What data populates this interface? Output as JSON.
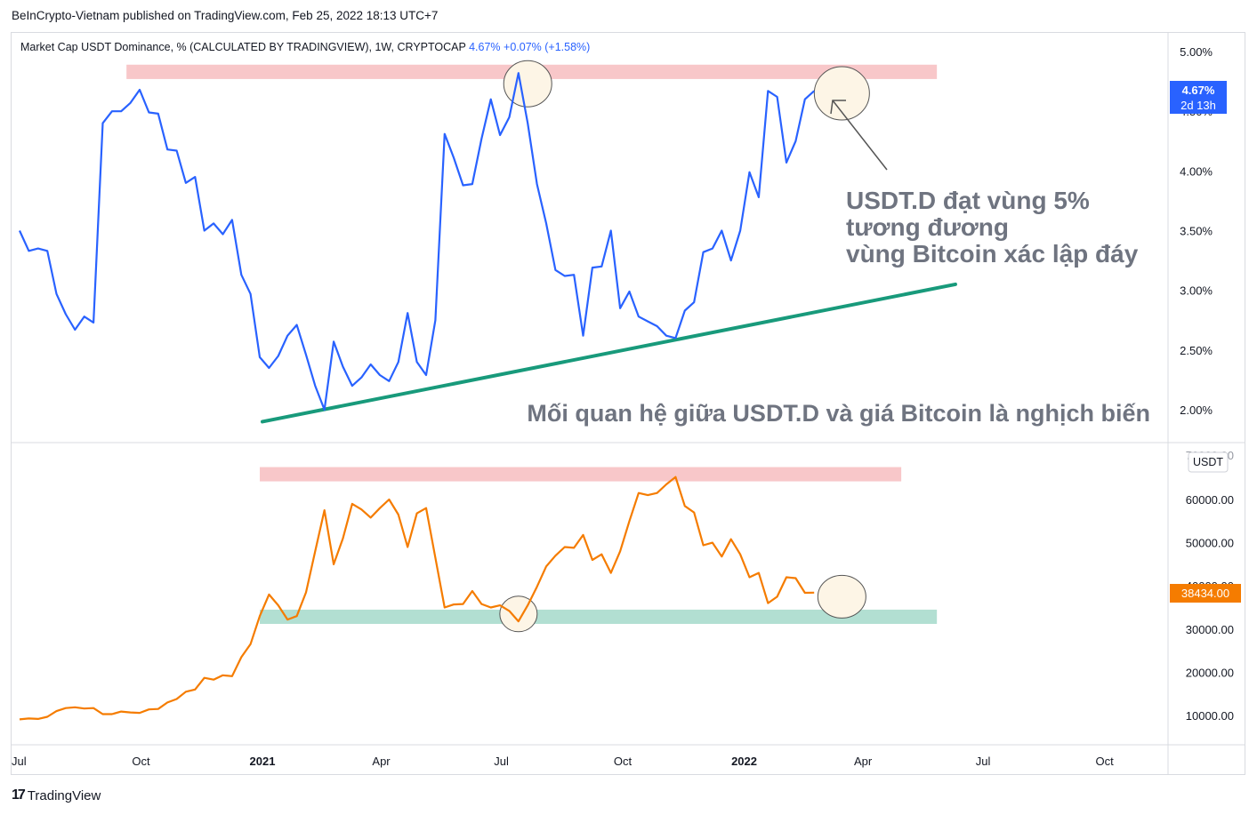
{
  "publisher": "BeInCrypto-Vietnam published on TradingView.com, Feb 25, 2022 18:13 UTC+7",
  "brand": "TradingView",
  "legend": {
    "title": "Market Cap USDT Dominance, % (CALCULATED BY TRADINGVIEW), 1W, CRYPTOCAP",
    "value": "4.67%",
    "change": "+0.07% (+1.58%)"
  },
  "annotations": {
    "note_line1": "USDT.D đạt vùng 5%",
    "note_line2": "tương đương",
    "note_line3": "vùng Bitcoin xác lập đáy",
    "relation": "Mối quan hệ giữa USDT.D và giá Bitcoin là nghịch biến"
  },
  "colors": {
    "dominance_line": "#2962ff",
    "btc_line": "#f57c00",
    "trendline": "#189a7b",
    "resistance_zone": "#f8c7c9",
    "support_zone": "#b2dfd2",
    "circle_fill": "#fdf5e6",
    "annotation_text": "#6f7480"
  },
  "price_labels": {
    "dom_last": "4.67%",
    "dom_countdown": "2d 13h",
    "btc_last": "38434.00",
    "btc_unit": "USDT"
  },
  "chart_data": [
    {
      "type": "line",
      "title": "Market Cap USDT Dominance, % (CALCULATED BY TRADINGVIEW), 1W, CRYPTOCAP",
      "ylabel": "",
      "y_ticks": [
        "5.00%",
        "4.50%",
        "4.00%",
        "3.50%",
        "3.00%",
        "2.50%",
        "2.00%"
      ],
      "ylim": [
        1.85,
        5.18
      ],
      "x_range": [
        "2020-07-01",
        "2022-10-31"
      ],
      "series": [
        {
          "name": "",
          "points": [
            [
              "2020-07-01",
              3.5
            ],
            [
              "2020-07-08",
              3.33
            ],
            [
              "2020-07-15",
              3.35
            ],
            [
              "2020-07-22",
              3.33
            ],
            [
              "2020-07-29",
              2.97
            ],
            [
              "2020-08-05",
              2.8
            ],
            [
              "2020-08-12",
              2.67
            ],
            [
              "2020-08-19",
              2.78
            ],
            [
              "2020-08-26",
              2.73
            ],
            [
              "2020-09-02",
              4.4
            ],
            [
              "2020-09-09",
              4.5
            ],
            [
              "2020-09-16",
              4.5
            ],
            [
              "2020-09-23",
              4.57
            ],
            [
              "2020-09-30",
              4.68
            ],
            [
              "2020-10-07",
              4.49
            ],
            [
              "2020-10-14",
              4.48
            ],
            [
              "2020-10-21",
              4.18
            ],
            [
              "2020-10-28",
              4.17
            ],
            [
              "2020-11-04",
              3.9
            ],
            [
              "2020-11-11",
              3.95
            ],
            [
              "2020-11-18",
              3.5
            ],
            [
              "2020-11-25",
              3.56
            ],
            [
              "2020-12-02",
              3.47
            ],
            [
              "2020-12-09",
              3.59
            ],
            [
              "2020-12-16",
              3.13
            ],
            [
              "2020-12-23",
              2.97
            ],
            [
              "2020-12-30",
              2.44
            ],
            [
              "2021-01-06",
              2.35
            ],
            [
              "2021-01-13",
              2.45
            ],
            [
              "2021-01-20",
              2.62
            ],
            [
              "2021-01-27",
              2.71
            ],
            [
              "2021-02-03",
              2.46
            ],
            [
              "2021-02-10",
              2.2
            ],
            [
              "2021-02-17",
              2.0
            ],
            [
              "2021-02-24",
              2.57
            ],
            [
              "2021-03-03",
              2.36
            ],
            [
              "2021-03-10",
              2.2
            ],
            [
              "2021-03-17",
              2.27
            ],
            [
              "2021-03-24",
              2.38
            ],
            [
              "2021-03-31",
              2.29
            ],
            [
              "2021-04-07",
              2.24
            ],
            [
              "2021-04-14",
              2.4
            ],
            [
              "2021-04-21",
              2.81
            ],
            [
              "2021-04-28",
              2.4
            ],
            [
              "2021-05-05",
              2.29
            ],
            [
              "2021-05-12",
              2.75
            ],
            [
              "2021-05-19",
              4.31
            ],
            [
              "2021-05-26",
              4.11
            ],
            [
              "2021-06-02",
              3.88
            ],
            [
              "2021-06-09",
              3.89
            ],
            [
              "2021-06-16",
              4.27
            ],
            [
              "2021-06-23",
              4.6
            ],
            [
              "2021-06-30",
              4.3
            ],
            [
              "2021-07-07",
              4.45
            ],
            [
              "2021-07-14",
              4.82
            ],
            [
              "2021-07-21",
              4.4
            ],
            [
              "2021-07-28",
              3.89
            ],
            [
              "2021-08-04",
              3.56
            ],
            [
              "2021-08-11",
              3.17
            ],
            [
              "2021-08-18",
              3.12
            ],
            [
              "2021-08-25",
              3.13
            ],
            [
              "2021-09-01",
              2.62
            ],
            [
              "2021-09-08",
              3.19
            ],
            [
              "2021-09-15",
              3.2
            ],
            [
              "2021-09-22",
              3.5
            ],
            [
              "2021-09-29",
              2.85
            ],
            [
              "2021-10-06",
              2.99
            ],
            [
              "2021-10-13",
              2.78
            ],
            [
              "2021-10-20",
              2.74
            ],
            [
              "2021-10-27",
              2.7
            ],
            [
              "2021-11-03",
              2.62
            ],
            [
              "2021-11-10",
              2.6
            ],
            [
              "2021-11-17",
              2.83
            ],
            [
              "2021-11-24",
              2.9
            ],
            [
              "2021-12-01",
              3.32
            ],
            [
              "2021-12-08",
              3.35
            ],
            [
              "2021-12-15",
              3.5
            ],
            [
              "2021-12-22",
              3.25
            ],
            [
              "2021-12-29",
              3.5
            ],
            [
              "2022-01-05",
              3.99
            ],
            [
              "2022-01-12",
              3.78
            ],
            [
              "2022-01-19",
              4.67
            ],
            [
              "2022-01-26",
              4.62
            ],
            [
              "2022-02-02",
              4.07
            ],
            [
              "2022-02-09",
              4.25
            ],
            [
              "2022-02-16",
              4.6
            ],
            [
              "2022-02-23",
              4.67
            ]
          ]
        }
      ],
      "trendline": [
        [
          "2021-01-01",
          1.9
        ],
        [
          "2022-06-10",
          3.05
        ]
      ],
      "zones": [
        {
          "from": "2020-09-20",
          "to": "2022-05-27",
          "ymin": 4.77,
          "ymax": 4.89
        }
      ],
      "circles": [
        {
          "x": "2021-07-21",
          "y": 4.73
        },
        {
          "x": "2022-03-16",
          "y": 4.65
        }
      ]
    },
    {
      "type": "line",
      "title": "",
      "ylabel": "USDT",
      "y_ticks": [
        "60000.00",
        "50000.00",
        "40000.00",
        "30000.00",
        "20000.00",
        "10000.00"
      ],
      "ylim": [
        3000,
        70000
      ],
      "x_range": [
        "2020-07-01",
        "2022-10-31"
      ],
      "x_ticks": [
        "Jul",
        "Oct",
        "2021",
        "Apr",
        "Jul",
        "Oct",
        "2022",
        "Apr",
        "Jul",
        "Oct"
      ],
      "series": [
        {
          "name": "",
          "points": [
            [
              "2020-07-01",
              9100
            ],
            [
              "2020-07-08",
              9300
            ],
            [
              "2020-07-15",
              9200
            ],
            [
              "2020-07-22",
              9700
            ],
            [
              "2020-07-29",
              11000
            ],
            [
              "2020-08-05",
              11700
            ],
            [
              "2020-08-12",
              11900
            ],
            [
              "2020-08-19",
              11600
            ],
            [
              "2020-08-26",
              11700
            ],
            [
              "2020-09-02",
              10300
            ],
            [
              "2020-09-09",
              10300
            ],
            [
              "2020-09-16",
              10900
            ],
            [
              "2020-09-23",
              10700
            ],
            [
              "2020-09-30",
              10600
            ],
            [
              "2020-10-07",
              11400
            ],
            [
              "2020-10-14",
              11500
            ],
            [
              "2020-10-21",
              13000
            ],
            [
              "2020-10-28",
              13800
            ],
            [
              "2020-11-04",
              15500
            ],
            [
              "2020-11-11",
              16000
            ],
            [
              "2020-11-18",
              18700
            ],
            [
              "2020-11-25",
              18300
            ],
            [
              "2020-12-02",
              19300
            ],
            [
              "2020-12-09",
              19100
            ],
            [
              "2020-12-16",
              23500
            ],
            [
              "2020-12-23",
              26500
            ],
            [
              "2020-12-30",
              33000
            ],
            [
              "2021-01-06",
              38000
            ],
            [
              "2021-01-13",
              35500
            ],
            [
              "2021-01-20",
              32200
            ],
            [
              "2021-01-27",
              33000
            ],
            [
              "2021-02-03",
              38500
            ],
            [
              "2021-02-10",
              48000
            ],
            [
              "2021-02-17",
              57500
            ],
            [
              "2021-02-24",
              45000
            ],
            [
              "2021-03-03",
              51000
            ],
            [
              "2021-03-10",
              59000
            ],
            [
              "2021-03-17",
              57700
            ],
            [
              "2021-03-24",
              55800
            ],
            [
              "2021-03-31",
              58000
            ],
            [
              "2021-04-07",
              60000
            ],
            [
              "2021-04-14",
              56500
            ],
            [
              "2021-04-21",
              49000
            ],
            [
              "2021-04-28",
              56800
            ],
            [
              "2021-05-05",
              58000
            ],
            [
              "2021-05-12",
              46500
            ],
            [
              "2021-05-19",
              35000
            ],
            [
              "2021-05-26",
              35700
            ],
            [
              "2021-06-02",
              35800
            ],
            [
              "2021-06-09",
              38800
            ],
            [
              "2021-06-16",
              35800
            ],
            [
              "2021-06-23",
              35000
            ],
            [
              "2021-06-30",
              35500
            ],
            [
              "2021-07-07",
              34200
            ],
            [
              "2021-07-14",
              31800
            ],
            [
              "2021-07-21",
              35500
            ],
            [
              "2021-07-28",
              39800
            ],
            [
              "2021-08-04",
              44500
            ],
            [
              "2021-08-11",
              47000
            ],
            [
              "2021-08-18",
              49000
            ],
            [
              "2021-08-25",
              48800
            ],
            [
              "2021-09-01",
              51800
            ],
            [
              "2021-09-08",
              46000
            ],
            [
              "2021-09-15",
              47300
            ],
            [
              "2021-09-22",
              43000
            ],
            [
              "2021-09-29",
              48000
            ],
            [
              "2021-10-06",
              55000
            ],
            [
              "2021-10-13",
              61500
            ],
            [
              "2021-10-20",
              61000
            ],
            [
              "2021-10-27",
              61500
            ],
            [
              "2021-11-03",
              63500
            ],
            [
              "2021-11-10",
              65200
            ],
            [
              "2021-11-17",
              58500
            ],
            [
              "2021-11-24",
              57000
            ],
            [
              "2021-12-01",
              49400
            ],
            [
              "2021-12-08",
              50000
            ],
            [
              "2021-12-15",
              46800
            ],
            [
              "2021-12-22",
              50800
            ],
            [
              "2021-12-29",
              47300
            ],
            [
              "2022-01-05",
              42000
            ],
            [
              "2022-01-12",
              43000
            ],
            [
              "2022-01-19",
              36000
            ],
            [
              "2022-01-26",
              37500
            ],
            [
              "2022-02-02",
              42000
            ],
            [
              "2022-02-09",
              41800
            ],
            [
              "2022-02-16",
              38400
            ],
            [
              "2022-02-23",
              38434
            ]
          ]
        }
      ],
      "zones": [
        {
          "from": "2020-12-30",
          "to": "2022-04-30",
          "ymin": 64200,
          "ymax": 67500
        },
        {
          "from": "2020-12-30",
          "to": "2022-05-27",
          "ymin": 31200,
          "ymax": 34500
        }
      ],
      "circles": [
        {
          "x": "2021-07-14",
          "y": 33500
        },
        {
          "x": "2022-03-16",
          "y": 37500
        }
      ]
    }
  ]
}
